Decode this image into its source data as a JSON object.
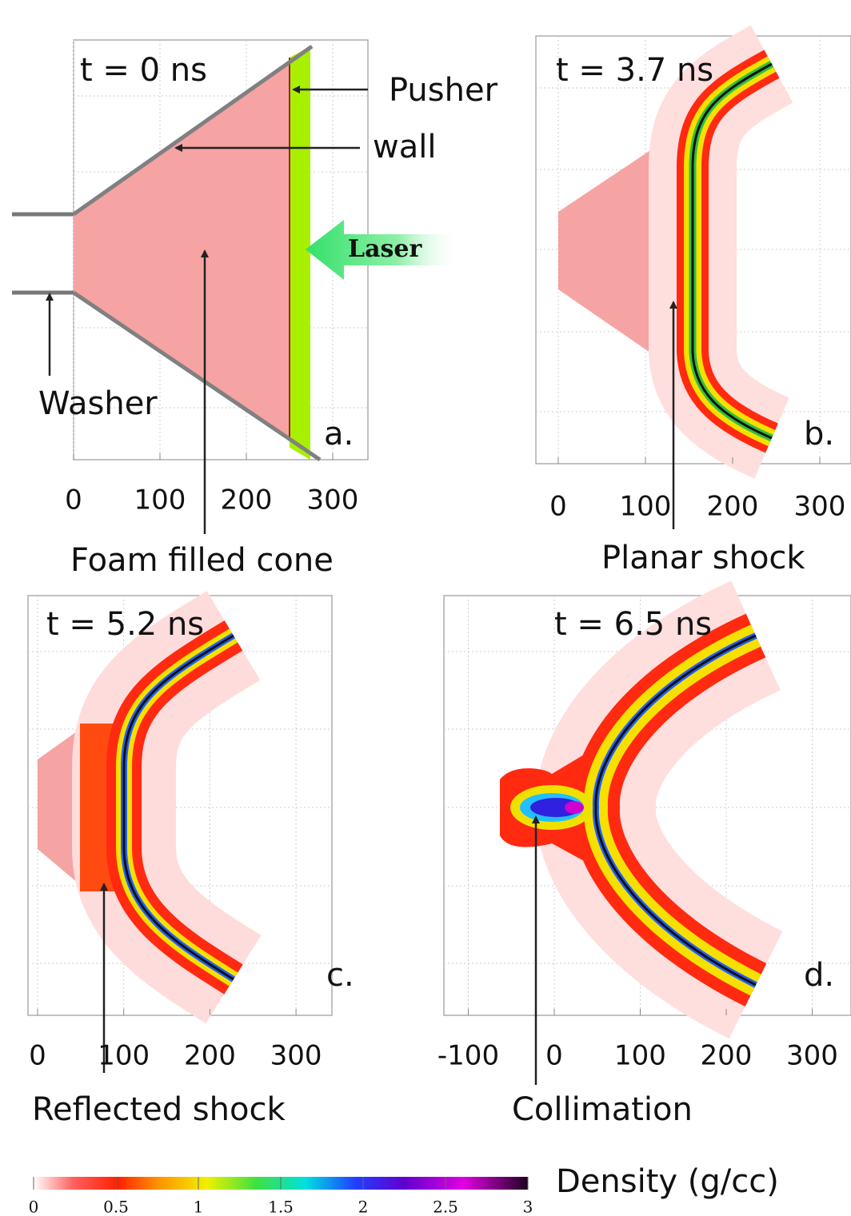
{
  "panels": [
    {
      "time": "t = 0 ns",
      "letter": "a.",
      "caption": "Foam filled cone",
      "xticks": [
        0,
        100,
        200,
        300
      ],
      "annotations": [
        "Pusher",
        "wall",
        "Laser",
        "Washer"
      ]
    },
    {
      "time": "t = 3.7 ns",
      "letter": "b.",
      "caption": "Planar shock",
      "xticks": [
        0,
        100,
        200,
        300
      ]
    },
    {
      "time": "t = 5.2 ns",
      "letter": "c.",
      "caption": "Reflected shock",
      "xticks": [
        0,
        100,
        200,
        300
      ]
    },
    {
      "time": "t = 6.5 ns",
      "letter": "d.",
      "caption": "Collimation",
      "xticks": [
        -100,
        0,
        100,
        200,
        300
      ]
    }
  ],
  "colorbar": {
    "label": "Density (g/cc)",
    "ticks": [
      0,
      0.5,
      1,
      1.5,
      2,
      2.5,
      3
    ]
  }
}
